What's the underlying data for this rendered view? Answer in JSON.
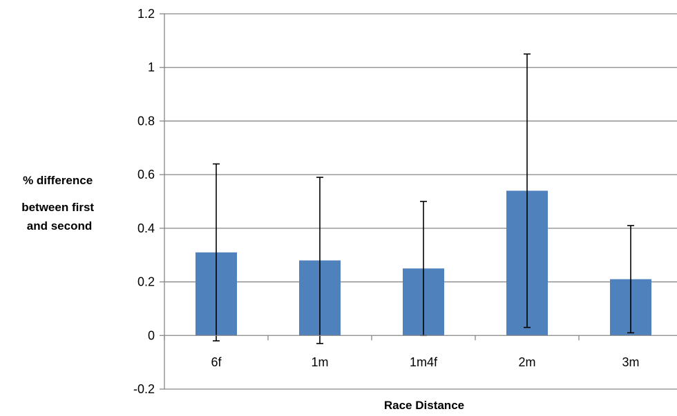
{
  "chart_data": {
    "type": "bar",
    "title": "",
    "categories": [
      "6f",
      "1m",
      "1m4f",
      "2m",
      "3m"
    ],
    "values": [
      0.31,
      0.28,
      0.25,
      0.54,
      0.21
    ],
    "error_low": [
      -0.02,
      -0.03,
      0.0,
      0.03,
      0.01
    ],
    "error_high": [
      0.64,
      0.59,
      0.5,
      1.05,
      0.41
    ],
    "xlabel": "Race Distance",
    "ylabel_lines": [
      "% difference",
      "between first",
      "and second"
    ],
    "ylim": [
      -0.2,
      1.2
    ],
    "yticks": [
      -0.2,
      0,
      0.2,
      0.4,
      0.6,
      0.8,
      1,
      1.2
    ],
    "ytick_labels": [
      "-0.2",
      "0",
      "0.2",
      "0.4",
      "0.6",
      "0.8",
      "1",
      "1.2"
    ],
    "grid": true,
    "bar_color": "#4F81BD",
    "grid_color": "#868686"
  }
}
